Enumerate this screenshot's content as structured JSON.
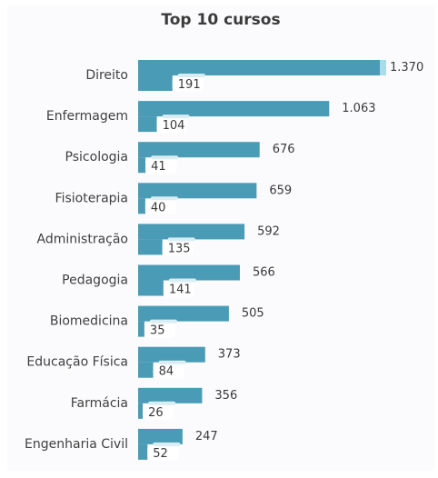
{
  "chart_data": {
    "type": "bar",
    "orientation": "horizontal",
    "title": "Top 10 cursos",
    "categories": [
      "Direito",
      "Enfermagem",
      "Psicologia",
      "Fisioterapia",
      "Administração",
      "Pedagogia",
      "Biomedicina",
      "Educação Física",
      "Farmácia",
      "Engenharia Civil"
    ],
    "series": [
      {
        "values": [
          1370,
          1063,
          676,
          659,
          592,
          566,
          505,
          373,
          356,
          247
        ],
        "labels": [
          "1.370",
          "1.063",
          "676",
          "659",
          "592",
          "566",
          "505",
          "373",
          "356",
          "247"
        ]
      },
      {
        "values": [
          191,
          104,
          41,
          40,
          135,
          141,
          35,
          84,
          26,
          52
        ],
        "labels": [
          "191",
          "104",
          "41",
          "40",
          "135",
          "141",
          "35",
          "84",
          "26",
          "52"
        ]
      }
    ],
    "xlim": [
      0,
      1400
    ],
    "grid": false,
    "legend": "none",
    "colors": {
      "bar": "#4a9bb5",
      "highlight": "#a9dbe8",
      "label_bg": "#ffffff"
    }
  }
}
